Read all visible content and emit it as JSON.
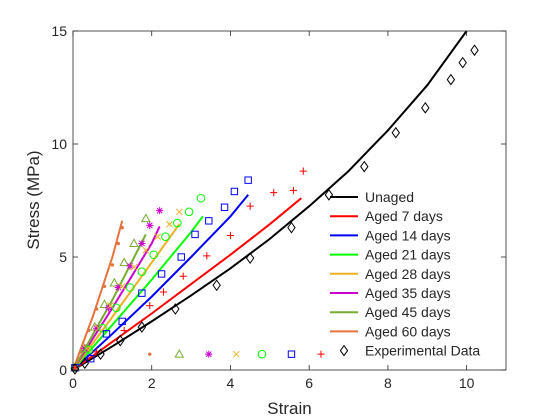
{
  "chart_data": {
    "type": "line",
    "title": "",
    "xlabel": "Strain",
    "ylabel": "Stress (MPa)",
    "xlim": [
      0,
      11
    ],
    "ylim": [
      0,
      15
    ],
    "xticks": [
      0,
      2,
      4,
      6,
      8,
      10
    ],
    "yticks": [
      0,
      5,
      10,
      15
    ],
    "xtick_labels": [
      "0",
      "2",
      "4",
      "6",
      "8",
      "10"
    ],
    "ytick_labels": [
      "0",
      "5",
      "10",
      "15"
    ],
    "grid": false,
    "legend_position": "bottom-right",
    "series": [
      {
        "name": "Unaged",
        "color": "#000000",
        "line_x": [
          0,
          1,
          2,
          3,
          4,
          5,
          6,
          7,
          8,
          9,
          10
        ],
        "line_y": [
          0,
          1.05,
          2.15,
          3.3,
          4.5,
          5.8,
          7.25,
          8.8,
          10.6,
          12.6,
          15.0
        ],
        "marker": "diamond",
        "points_x": [
          0.05,
          0.3,
          0.7,
          1.2,
          1.75,
          2.6,
          3.65,
          4.5,
          5.55,
          6.5,
          7.4,
          8.2,
          8.95,
          9.6,
          9.9,
          10.2
        ],
        "points_y": [
          0.05,
          0.3,
          0.7,
          1.3,
          1.9,
          2.7,
          3.75,
          4.95,
          6.3,
          7.75,
          9.0,
          10.5,
          11.6,
          12.85,
          13.6,
          14.15
        ]
      },
      {
        "name": "Aged 7 days",
        "color": "#ff0000",
        "line_x": [
          0,
          1,
          2,
          3,
          4,
          5,
          5.8
        ],
        "line_y": [
          0,
          1.25,
          2.5,
          3.8,
          5.1,
          6.45,
          7.6
        ],
        "marker": "plus",
        "points_x": [
          0.05,
          0.6,
          1.3,
          1.95,
          2.3,
          2.8,
          3.4,
          4.0,
          4.5,
          5.1,
          5.6,
          5.85
        ],
        "points_y": [
          0.1,
          0.8,
          1.75,
          2.85,
          3.45,
          4.15,
          5.05,
          5.95,
          7.25,
          7.85,
          7.95,
          8.8
        ]
      },
      {
        "name": "Aged 14 days",
        "color": "#0000ff",
        "line_x": [
          0,
          1,
          2,
          3,
          4,
          4.45
        ],
        "line_y": [
          0,
          1.6,
          3.25,
          5.0,
          6.8,
          7.75
        ],
        "marker": "square",
        "points_x": [
          0.05,
          0.45,
          0.85,
          1.25,
          1.75,
          2.25,
          2.75,
          3.1,
          3.45,
          3.85,
          4.1,
          4.45
        ],
        "points_y": [
          0.1,
          0.5,
          1.6,
          2.15,
          3.4,
          4.25,
          5.0,
          6.0,
          6.6,
          7.2,
          7.9,
          8.4
        ]
      },
      {
        "name": "Aged 21 days",
        "color": "#00ff00",
        "line_x": [
          0,
          1,
          2,
          3,
          3.3
        ],
        "line_y": [
          0,
          2.0,
          4.0,
          6.1,
          6.8
        ],
        "marker": "circle",
        "points_x": [
          0.05,
          0.4,
          0.75,
          1.1,
          1.45,
          1.75,
          2.05,
          2.35,
          2.65,
          2.95,
          3.25
        ],
        "points_y": [
          0.1,
          0.9,
          1.85,
          2.75,
          3.65,
          4.35,
          5.1,
          5.9,
          6.5,
          7.0,
          7.6
        ]
      },
      {
        "name": "Aged 28 days",
        "color": "#edb120",
        "line_x": [
          0,
          1,
          2,
          2.7
        ],
        "line_y": [
          0,
          2.35,
          4.75,
          6.45
        ],
        "marker": "x",
        "points_x": [
          0.05,
          0.35,
          0.65,
          0.95,
          1.25,
          1.55,
          1.85,
          2.15,
          2.45,
          2.7
        ],
        "points_y": [
          0.1,
          0.95,
          1.85,
          2.85,
          3.7,
          4.55,
          5.3,
          5.9,
          6.45,
          7.0
        ]
      },
      {
        "name": "Aged 35 days",
        "color": "#cc00cc",
        "line_x": [
          0,
          1,
          2,
          2.2
        ],
        "line_y": [
          0,
          2.75,
          5.6,
          6.35
        ],
        "marker": "asterisk",
        "points_x": [
          0.05,
          0.3,
          0.6,
          0.9,
          1.15,
          1.45,
          1.75,
          1.95,
          2.2
        ],
        "points_y": [
          0.1,
          0.95,
          1.85,
          2.75,
          3.65,
          4.6,
          5.6,
          6.4,
          7.05
        ]
      },
      {
        "name": "Aged 45 days",
        "color": "#77ac30",
        "line_x": [
          0,
          1,
          1.85
        ],
        "line_y": [
          0,
          3.1,
          6.0
        ],
        "marker": "triangle",
        "points_x": [
          0.05,
          0.3,
          0.55,
          0.8,
          1.05,
          1.3,
          1.55,
          1.85
        ],
        "points_y": [
          0.1,
          0.95,
          1.9,
          2.9,
          3.85,
          4.75,
          5.6,
          6.7
        ]
      },
      {
        "name": "Aged 60 days",
        "color": "#e6733c",
        "line_x": [
          0,
          0.5,
          1.0,
          1.25
        ],
        "line_y": [
          0,
          2.35,
          5.0,
          6.6
        ],
        "marker": "dot",
        "points_x": [
          0.05,
          0.2,
          0.4,
          0.6,
          0.8,
          1.0,
          1.15,
          1.25
        ],
        "points_y": [
          0.1,
          0.8,
          1.75,
          2.7,
          3.7,
          4.65,
          5.6,
          6.3
        ]
      }
    ],
    "marker_row": {
      "y": 0.7,
      "items": [
        {
          "series": "Aged 60 days",
          "x": 1.95
        },
        {
          "series": "Aged 45 days",
          "x": 2.7
        },
        {
          "series": "Aged 35 days",
          "x": 3.45
        },
        {
          "series": "Aged 28 days",
          "x": 4.15
        },
        {
          "series": "Aged 21 days",
          "x": 4.8
        },
        {
          "series": "Aged 14 days",
          "x": 5.55
        },
        {
          "series": "Aged 7 days",
          "x": 6.3
        }
      ]
    },
    "legend": [
      {
        "label": "Unaged",
        "color": "#000000",
        "kind": "line"
      },
      {
        "label": "Aged 7 days",
        "color": "#ff0000",
        "kind": "line"
      },
      {
        "label": "Aged 14 days",
        "color": "#0000ff",
        "kind": "line"
      },
      {
        "label": "Aged 21 days",
        "color": "#00ff00",
        "kind": "line"
      },
      {
        "label": "Aged 28 days",
        "color": "#edb120",
        "kind": "line"
      },
      {
        "label": "Aged 35 days",
        "color": "#cc00cc",
        "kind": "line"
      },
      {
        "label": "Aged 45 days",
        "color": "#77ac30",
        "kind": "line"
      },
      {
        "label": "Aged 60 days",
        "color": "#e6733c",
        "kind": "line"
      },
      {
        "label": "Experimental Data",
        "color": "#000000",
        "kind": "diamond"
      }
    ]
  }
}
